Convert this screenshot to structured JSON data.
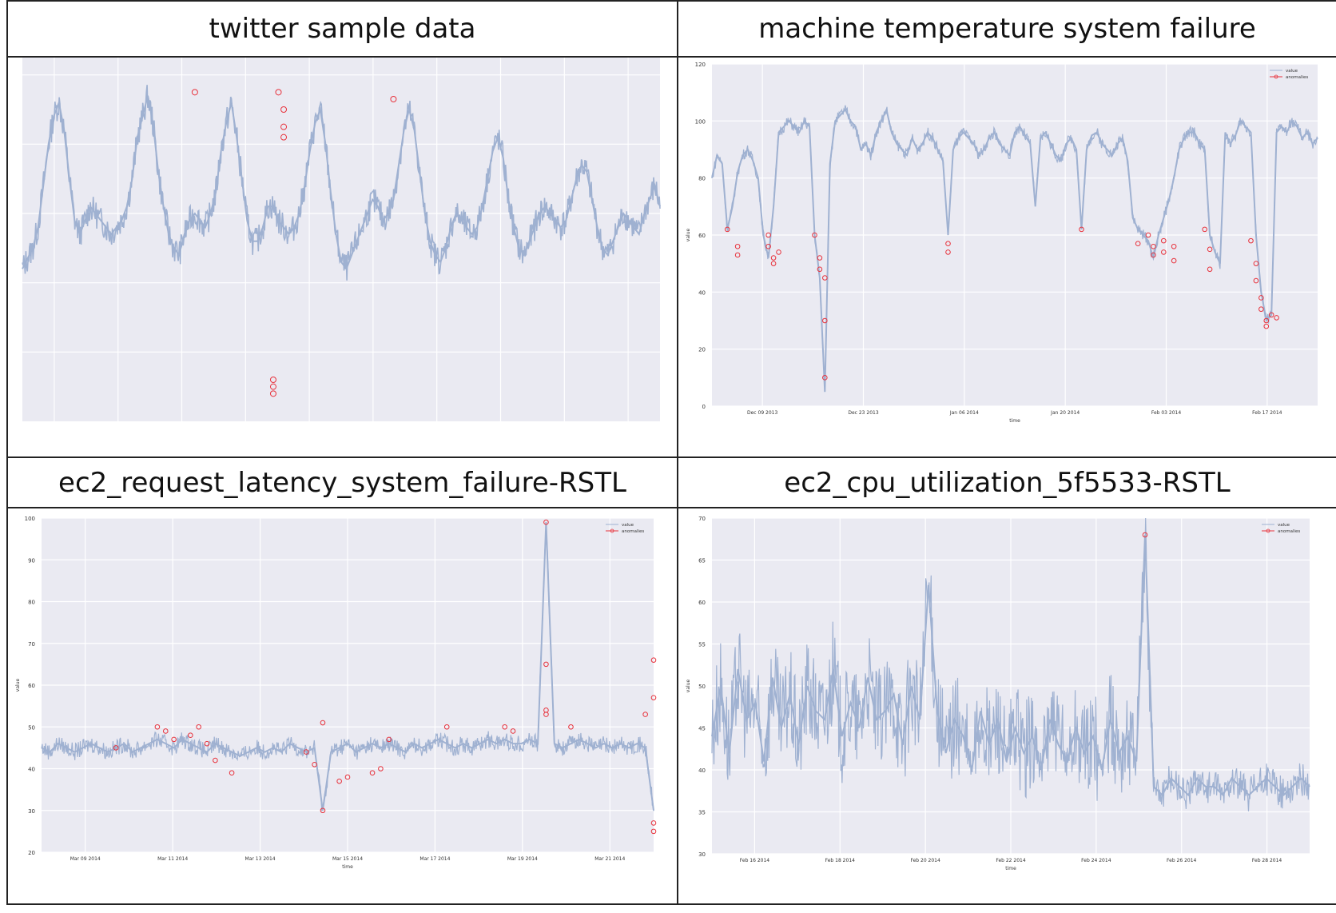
{
  "figure": {
    "panels": [
      {
        "title": "twitter sample data"
      },
      {
        "title": "machine temperature system failure"
      },
      {
        "title": "ec2_request_latency_system_failure-RSTL"
      },
      {
        "title": "ec2_cpu_utilization_5f5533-RSTL"
      }
    ],
    "colors": {
      "line": "#9fb1d1",
      "anomaly": "#e8323c",
      "background": "#eaeaf2",
      "grid": "#ffffff"
    }
  },
  "chart_data": [
    {
      "type": "line",
      "title": "twitter sample data",
      "xlabel": "",
      "ylabel": "",
      "grid": true,
      "legend": "",
      "series": [
        {
          "values": [
            44,
            47,
            50,
            56,
            68,
            80,
            88,
            92,
            84,
            70,
            58,
            54,
            58,
            62,
            60,
            58,
            56,
            54,
            56,
            58,
            62,
            70,
            82,
            88,
            94,
            86,
            72,
            62,
            54,
            50,
            48,
            54,
            58,
            60,
            58,
            56,
            60,
            66,
            78,
            86,
            92,
            82,
            70,
            58,
            52,
            52,
            56,
            62,
            62,
            58,
            56,
            54,
            56,
            60,
            68,
            78,
            86,
            90,
            80,
            66,
            54,
            46,
            44,
            48,
            52,
            56,
            60,
            64,
            62,
            58,
            60,
            64,
            74,
            84,
            90,
            84,
            72,
            60,
            52,
            48,
            46,
            50,
            56,
            60,
            58,
            56,
            54,
            56,
            62,
            70,
            78,
            82,
            76,
            64,
            56,
            50,
            48,
            52,
            56,
            60,
            62,
            60,
            58,
            56,
            58,
            64,
            70,
            74,
            72,
            64,
            56,
            50,
            48,
            52,
            56,
            60,
            58,
            56,
            54,
            60,
            64,
            68,
            62
          ]
        }
      ],
      "anomalies": [
        {
          "index": 33,
          "value": 95
        },
        {
          "index": 49,
          "value": 95
        },
        {
          "index": 50,
          "value": 90
        },
        {
          "index": 50,
          "value": 85
        },
        {
          "index": 50,
          "value": 82
        },
        {
          "index": 48,
          "value": 12
        },
        {
          "index": 48,
          "value": 10
        },
        {
          "index": 48,
          "value": 8
        },
        {
          "index": 71,
          "value": 93
        }
      ],
      "ylim": [
        0,
        105
      ]
    },
    {
      "type": "line",
      "title": "machine temperature system failure",
      "xlabel": "time",
      "ylabel": "value",
      "x_ticks": [
        "Dec 09 2013",
        "Dec 23 2013",
        "Jan 06 2014",
        "Jan 20 2014",
        "Feb 03 2014",
        "Feb 17 2014"
      ],
      "y_ticks": [
        0,
        20,
        40,
        60,
        80,
        100,
        120
      ],
      "ylim": [
        0,
        120
      ],
      "grid": true,
      "legend": "top-right",
      "legend_entries": [
        "value",
        "anomalies"
      ],
      "series": [
        {
          "name": "value",
          "values": [
            80,
            88,
            85,
            62,
            70,
            82,
            88,
            90,
            86,
            80,
            60,
            52,
            70,
            96,
            98,
            100,
            98,
            96,
            100,
            98,
            60,
            45,
            5,
            85,
            100,
            102,
            104,
            100,
            98,
            90,
            92,
            88,
            96,
            100,
            104,
            96,
            92,
            90,
            88,
            94,
            90,
            92,
            96,
            94,
            90,
            86,
            60,
            90,
            94,
            96,
            94,
            92,
            88,
            90,
            94,
            96,
            92,
            90,
            88,
            96,
            98,
            95,
            92,
            70,
            94,
            96,
            92,
            88,
            86,
            92,
            94,
            90,
            62,
            90,
            95,
            96,
            92,
            90,
            88,
            92,
            94,
            86,
            66,
            62,
            60,
            58,
            52,
            60,
            66,
            72,
            80,
            90,
            94,
            96,
            96,
            92,
            90,
            60,
            54,
            50,
            96,
            92,
            95,
            100,
            98,
            96,
            60,
            40,
            30,
            32,
            96,
            98,
            96,
            100,
            98,
            94,
            96,
            92,
            94
          ]
        }
      ],
      "anomalies": [
        {
          "index": 3,
          "value": 62
        },
        {
          "index": 5,
          "value": 56
        },
        {
          "index": 5,
          "value": 53
        },
        {
          "index": 11,
          "value": 60
        },
        {
          "index": 11,
          "value": 56
        },
        {
          "index": 12,
          "value": 52
        },
        {
          "index": 12,
          "value": 50
        },
        {
          "index": 13,
          "value": 54
        },
        {
          "index": 20,
          "value": 60
        },
        {
          "index": 21,
          "value": 52
        },
        {
          "index": 21,
          "value": 48
        },
        {
          "index": 22,
          "value": 45
        },
        {
          "index": 22,
          "value": 30
        },
        {
          "index": 22,
          "value": 10
        },
        {
          "index": 46,
          "value": 57
        },
        {
          "index": 46,
          "value": 54
        },
        {
          "index": 72,
          "value": 62
        },
        {
          "index": 83,
          "value": 57
        },
        {
          "index": 85,
          "value": 60
        },
        {
          "index": 86,
          "value": 56
        },
        {
          "index": 86,
          "value": 53
        },
        {
          "index": 88,
          "value": 58
        },
        {
          "index": 88,
          "value": 54
        },
        {
          "index": 90,
          "value": 56
        },
        {
          "index": 90,
          "value": 51
        },
        {
          "index": 96,
          "value": 62
        },
        {
          "index": 97,
          "value": 55
        },
        {
          "index": 97,
          "value": 48
        },
        {
          "index": 105,
          "value": 58
        },
        {
          "index": 106,
          "value": 50
        },
        {
          "index": 106,
          "value": 44
        },
        {
          "index": 107,
          "value": 38
        },
        {
          "index": 107,
          "value": 34
        },
        {
          "index": 108,
          "value": 30
        },
        {
          "index": 108,
          "value": 28
        },
        {
          "index": 109,
          "value": 32
        },
        {
          "index": 110,
          "value": 31
        }
      ]
    },
    {
      "type": "line",
      "title": "ec2_request_latency_system_failure-RSTL",
      "xlabel": "time",
      "ylabel": "value",
      "x_ticks": [
        "Mar 09 2014",
        "Mar 11 2014",
        "Mar 13 2014",
        "Mar 15 2014",
        "Mar 17 2014",
        "Mar 19 2014",
        "Mar 21 2014"
      ],
      "y_ticks": [
        20,
        30,
        40,
        50,
        60,
        70,
        80,
        90,
        100
      ],
      "ylim": [
        20,
        100
      ],
      "grid": true,
      "legend": "top-right",
      "legend_entries": [
        "value",
        "anomalies"
      ],
      "series": [
        {
          "name": "value",
          "values": [
            45,
            44,
            46,
            45,
            44,
            45,
            46,
            45,
            44,
            45,
            46,
            44,
            45,
            46,
            47,
            46,
            45,
            47,
            46,
            45,
            44,
            46,
            45,
            44,
            43,
            44,
            45,
            44,
            45,
            44,
            46,
            45,
            44,
            45,
            30,
            44,
            45,
            46,
            44,
            45,
            46,
            45,
            46,
            45,
            44,
            46,
            45,
            46,
            47,
            46,
            45,
            46,
            45,
            46,
            47,
            46,
            47,
            46,
            46,
            47,
            46,
            99,
            46,
            45,
            46,
            47,
            46,
            45,
            46,
            45,
            46,
            45,
            46,
            45,
            30
          ]
        }
      ],
      "anomalies": [
        {
          "index": 9,
          "value": 45
        },
        {
          "index": 14,
          "value": 50
        },
        {
          "index": 15,
          "value": 49
        },
        {
          "index": 16,
          "value": 47
        },
        {
          "index": 18,
          "value": 48
        },
        {
          "index": 19,
          "value": 50
        },
        {
          "index": 20,
          "value": 46
        },
        {
          "index": 21,
          "value": 42
        },
        {
          "index": 23,
          "value": 39
        },
        {
          "index": 32,
          "value": 44
        },
        {
          "index": 33,
          "value": 41
        },
        {
          "index": 34,
          "value": 30
        },
        {
          "index": 34,
          "value": 51
        },
        {
          "index": 36,
          "value": 37
        },
        {
          "index": 37,
          "value": 38
        },
        {
          "index": 40,
          "value": 39
        },
        {
          "index": 41,
          "value": 40
        },
        {
          "index": 42,
          "value": 47
        },
        {
          "index": 49,
          "value": 50
        },
        {
          "index": 56,
          "value": 50
        },
        {
          "index": 57,
          "value": 49
        },
        {
          "index": 61,
          "value": 99
        },
        {
          "index": 61,
          "value": 65
        },
        {
          "index": 61,
          "value": 53
        },
        {
          "index": 61,
          "value": 54
        },
        {
          "index": 64,
          "value": 50
        },
        {
          "index": 73,
          "value": 53
        },
        {
          "index": 74,
          "value": 66
        },
        {
          "index": 74,
          "value": 57
        },
        {
          "index": 74,
          "value": 25
        },
        {
          "index": 74,
          "value": 27
        }
      ]
    },
    {
      "type": "line",
      "title": "ec2_cpu_utilization_5f5533-RSTL",
      "xlabel": "time",
      "ylabel": "value",
      "x_ticks": [
        "Feb 16 2014",
        "Feb 18 2014",
        "Feb 20 2014",
        "Feb 22 2014",
        "Feb 24 2014",
        "Feb 26 2014",
        "Feb 28 2014"
      ],
      "y_ticks": [
        30,
        35,
        40,
        45,
        50,
        55,
        60,
        65,
        70
      ],
      "ylim": [
        30,
        70
      ],
      "grid": true,
      "legend": "top-right",
      "legend_entries": [
        "value",
        "anomalies"
      ],
      "series": [
        {
          "name": "value",
          "values": [
            44,
            50,
            42,
            52,
            46,
            48,
            41,
            51,
            45,
            49,
            43,
            50,
            47,
            46,
            52,
            44,
            48,
            45,
            51,
            46,
            47,
            49,
            43,
            50,
            46,
            62,
            47,
            42,
            46,
            44,
            40,
            47,
            43,
            46,
            41,
            45,
            42,
            44,
            40,
            46,
            43,
            41,
            45,
            42,
            44,
            40,
            46,
            42,
            44,
            41,
            68,
            38,
            37,
            39,
            38,
            37,
            39,
            38,
            38,
            37,
            39,
            38,
            37,
            38,
            39,
            38,
            37,
            38,
            39,
            38
          ]
        }
      ],
      "anomalies": [
        {
          "index": 50,
          "value": 68
        }
      ]
    }
  ]
}
